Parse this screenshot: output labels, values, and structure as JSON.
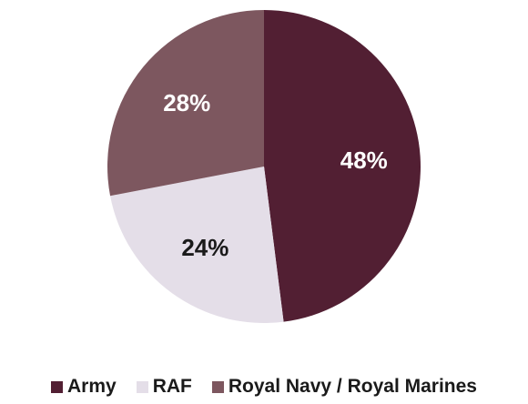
{
  "chart_data": {
    "type": "pie",
    "title": "",
    "slices": [
      {
        "name": "Army",
        "value": 48,
        "label": "48%",
        "color": "#521f33",
        "label_color": "#ffffff"
      },
      {
        "name": "RAF",
        "value": 24,
        "label": "24%",
        "color": "#e4dee8",
        "label_color": "#1a1a1a"
      },
      {
        "name": "Royal Navy / Royal Marines",
        "value": 28,
        "label": "28%",
        "color": "#7d575f",
        "label_color": "#ffffff"
      }
    ],
    "start": "12 o'clock",
    "direction": "clockwise",
    "legend_position": "bottom"
  }
}
